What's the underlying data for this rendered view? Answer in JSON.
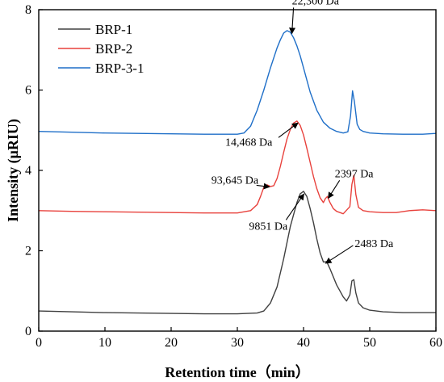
{
  "chart_data": {
    "type": "line",
    "xlabel": "Retention time（min）",
    "ylabel": "Intensity (μRIU)",
    "xlim": [
      0,
      60
    ],
    "ylim": [
      0,
      8
    ],
    "xticks": [
      0,
      10,
      20,
      30,
      40,
      50,
      60
    ],
    "yticks": [
      0,
      2,
      4,
      6,
      8
    ],
    "grid": false,
    "legend_position": "top-left",
    "series": [
      {
        "name": "BRP-1",
        "color": "#404040",
        "x": [
          0,
          5,
          10,
          15,
          20,
          25,
          30,
          33,
          34,
          35,
          36,
          37,
          38,
          39,
          39.5,
          40,
          40.5,
          41,
          41.5,
          42,
          42.5,
          43,
          43.5,
          44,
          45,
          46,
          46.5,
          47,
          47.3,
          47.6,
          47.9,
          48.3,
          49,
          50,
          52,
          55,
          58,
          60
        ],
        "y": [
          0.5,
          0.48,
          0.46,
          0.45,
          0.44,
          0.43,
          0.43,
          0.45,
          0.5,
          0.7,
          1.1,
          1.8,
          2.6,
          3.2,
          3.42,
          3.48,
          3.35,
          3.05,
          2.7,
          2.3,
          1.95,
          1.72,
          1.73,
          1.55,
          1.15,
          0.85,
          0.75,
          0.9,
          1.25,
          1.28,
          0.95,
          0.7,
          0.58,
          0.52,
          0.48,
          0.46,
          0.46,
          0.46
        ]
      },
      {
        "name": "BRP-2",
        "color": "#e8413c",
        "x": [
          0,
          5,
          10,
          15,
          20,
          25,
          30,
          32,
          33,
          33.5,
          34,
          34.5,
          35,
          35.5,
          36,
          36.5,
          37,
          37.5,
          38,
          38.5,
          39,
          39.5,
          40,
          40.5,
          41,
          41.5,
          42,
          42.5,
          43,
          43.3,
          43.6,
          44,
          44.5,
          45,
          46,
          47,
          47.3,
          47.6,
          47.9,
          48.3,
          49,
          50,
          52,
          54,
          56,
          58,
          60
        ],
        "y": [
          3.0,
          2.98,
          2.97,
          2.96,
          2.95,
          2.94,
          2.94,
          3.0,
          3.15,
          3.35,
          3.58,
          3.64,
          3.6,
          3.62,
          3.8,
          4.1,
          4.45,
          4.78,
          5.02,
          5.18,
          5.23,
          5.12,
          4.88,
          4.55,
          4.2,
          3.85,
          3.55,
          3.32,
          3.2,
          3.3,
          3.35,
          3.2,
          3.05,
          2.98,
          2.92,
          3.1,
          3.65,
          3.88,
          3.4,
          3.08,
          3.0,
          2.97,
          2.95,
          2.95,
          3.0,
          3.02,
          3.0
        ]
      },
      {
        "name": "BRP-3-1",
        "color": "#1f6fc8",
        "x": [
          0,
          5,
          10,
          15,
          20,
          25,
          30,
          31,
          32,
          33,
          34,
          35,
          36,
          36.5,
          37,
          37.5,
          38,
          38.5,
          39,
          39.5,
          40,
          40.5,
          41,
          42,
          43,
          44,
          45,
          46,
          46.7,
          47.1,
          47.4,
          47.7,
          48.1,
          48.5,
          49,
          50,
          52,
          55,
          58,
          60
        ],
        "y": [
          4.97,
          4.95,
          4.93,
          4.92,
          4.91,
          4.9,
          4.9,
          4.93,
          5.1,
          5.5,
          6.0,
          6.55,
          7.05,
          7.25,
          7.42,
          7.48,
          7.44,
          7.3,
          7.1,
          6.85,
          6.55,
          6.25,
          5.95,
          5.5,
          5.2,
          5.05,
          4.97,
          4.93,
          4.96,
          5.35,
          5.98,
          5.7,
          5.15,
          5.02,
          4.97,
          4.93,
          4.91,
          4.9,
          4.9,
          4.92
        ]
      }
    ],
    "annotations": [
      {
        "text": "22,300 Da",
        "x": 38,
        "y": 7.45
      },
      {
        "text": "14,468 Da",
        "x": 38.9,
        "y": 5.22
      },
      {
        "text": "93,645 Da",
        "x": 34.6,
        "y": 3.63
      },
      {
        "text": "2397 Da",
        "x": 43.5,
        "y": 3.35
      },
      {
        "text": "9851 Da",
        "x": 39.8,
        "y": 3.45
      },
      {
        "text": "2483 Da",
        "x": 43.1,
        "y": 1.73
      }
    ]
  }
}
